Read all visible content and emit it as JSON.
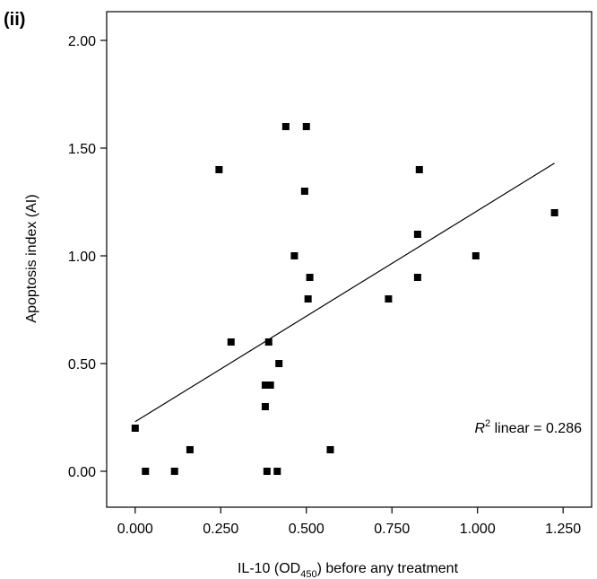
{
  "panel_label": "(ii)",
  "chart_data": {
    "type": "scatter",
    "xlabel": {
      "pre": "IL-10 (OD",
      "sub": "450",
      "post": ") before any treatment"
    },
    "ylabel": "Apoptosis index (AI)",
    "xlim": [
      -0.0833,
      1.3333
    ],
    "ylim": [
      -0.1667,
      2.1333
    ],
    "xticks": [
      0,
      0.25,
      0.5,
      0.75,
      1.0,
      1.25
    ],
    "xtick_labels": [
      "0.000",
      "0.250",
      "0.500",
      "0.750",
      "1.000",
      "1.250"
    ],
    "yticks": [
      0,
      0.5,
      1.0,
      1.5,
      2.0
    ],
    "ytick_labels": [
      "0.00",
      "0.50",
      "1.00",
      "1.50",
      "2.00"
    ],
    "grid": false,
    "points": [
      {
        "x": 0.0,
        "y": 0.2
      },
      {
        "x": 0.03,
        "y": 0.0
      },
      {
        "x": 0.115,
        "y": 0.0
      },
      {
        "x": 0.16,
        "y": 0.1
      },
      {
        "x": 0.245,
        "y": 1.4
      },
      {
        "x": 0.28,
        "y": 0.6
      },
      {
        "x": 0.38,
        "y": 0.4
      },
      {
        "x": 0.38,
        "y": 0.3
      },
      {
        "x": 0.385,
        "y": 0.0
      },
      {
        "x": 0.39,
        "y": 0.6
      },
      {
        "x": 0.395,
        "y": 0.4
      },
      {
        "x": 0.415,
        "y": 0.0
      },
      {
        "x": 0.42,
        "y": 0.5
      },
      {
        "x": 0.44,
        "y": 1.6
      },
      {
        "x": 0.465,
        "y": 1.0
      },
      {
        "x": 0.495,
        "y": 1.3
      },
      {
        "x": 0.5,
        "y": 1.6
      },
      {
        "x": 0.505,
        "y": 0.8
      },
      {
        "x": 0.51,
        "y": 0.9
      },
      {
        "x": 0.57,
        "y": 0.1
      },
      {
        "x": 0.74,
        "y": 0.8
      },
      {
        "x": 0.825,
        "y": 1.1
      },
      {
        "x": 0.825,
        "y": 0.9
      },
      {
        "x": 0.83,
        "y": 1.4
      },
      {
        "x": 0.995,
        "y": 1.0
      },
      {
        "x": 1.225,
        "y": 1.2
      }
    ],
    "fit_line": {
      "x": [
        0.0,
        1.225
      ],
      "y": [
        0.23,
        1.43
      ]
    },
    "annotation": {
      "r": "R",
      "sup": "2",
      "rest": " linear = 0.286"
    }
  }
}
